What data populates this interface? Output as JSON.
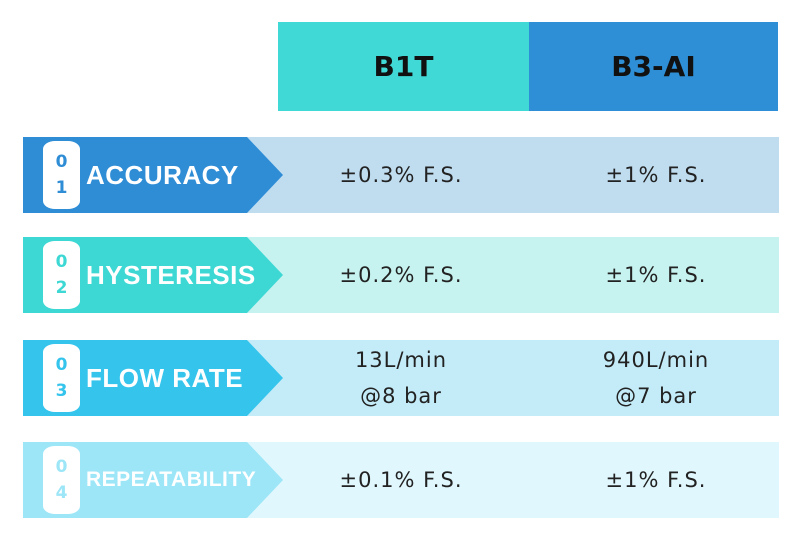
{
  "header": {
    "col1": "B1T",
    "col2": "B3-AI"
  },
  "colors": {
    "col1": "#40d9d6",
    "col2": "#2e8fd6"
  },
  "rows": [
    {
      "n1": "0",
      "n2": "1",
      "label": "ACCURACY",
      "b1t": [
        "±0.3% F.S."
      ],
      "b3": [
        "±1% F.S."
      ],
      "arrow": "#2f8dd6",
      "bg": "#c0ddf0"
    },
    {
      "n1": "0",
      "n2": "2",
      "label": "HYSTERESIS",
      "b1t": [
        "±0.2% F.S."
      ],
      "b3": [
        "±1% F.S."
      ],
      "arrow": "#3dd8d4",
      "bg": "#c6f3f0"
    },
    {
      "n1": "0",
      "n2": "3",
      "label": "FLOW RATE",
      "b1t": [
        "13L/min",
        "@8 bar"
      ],
      "b3": [
        "940L/min",
        "@7 bar"
      ],
      "arrow": "#35c4ec",
      "bg": "#c4ecf8"
    },
    {
      "n1": "0",
      "n2": "4",
      "label": "REPEATABILITY",
      "b1t": [
        "±0.1% F.S."
      ],
      "b3": [
        "±1% F.S."
      ],
      "arrow": "#9ce6f8",
      "bg": "#e0f7fd"
    }
  ]
}
